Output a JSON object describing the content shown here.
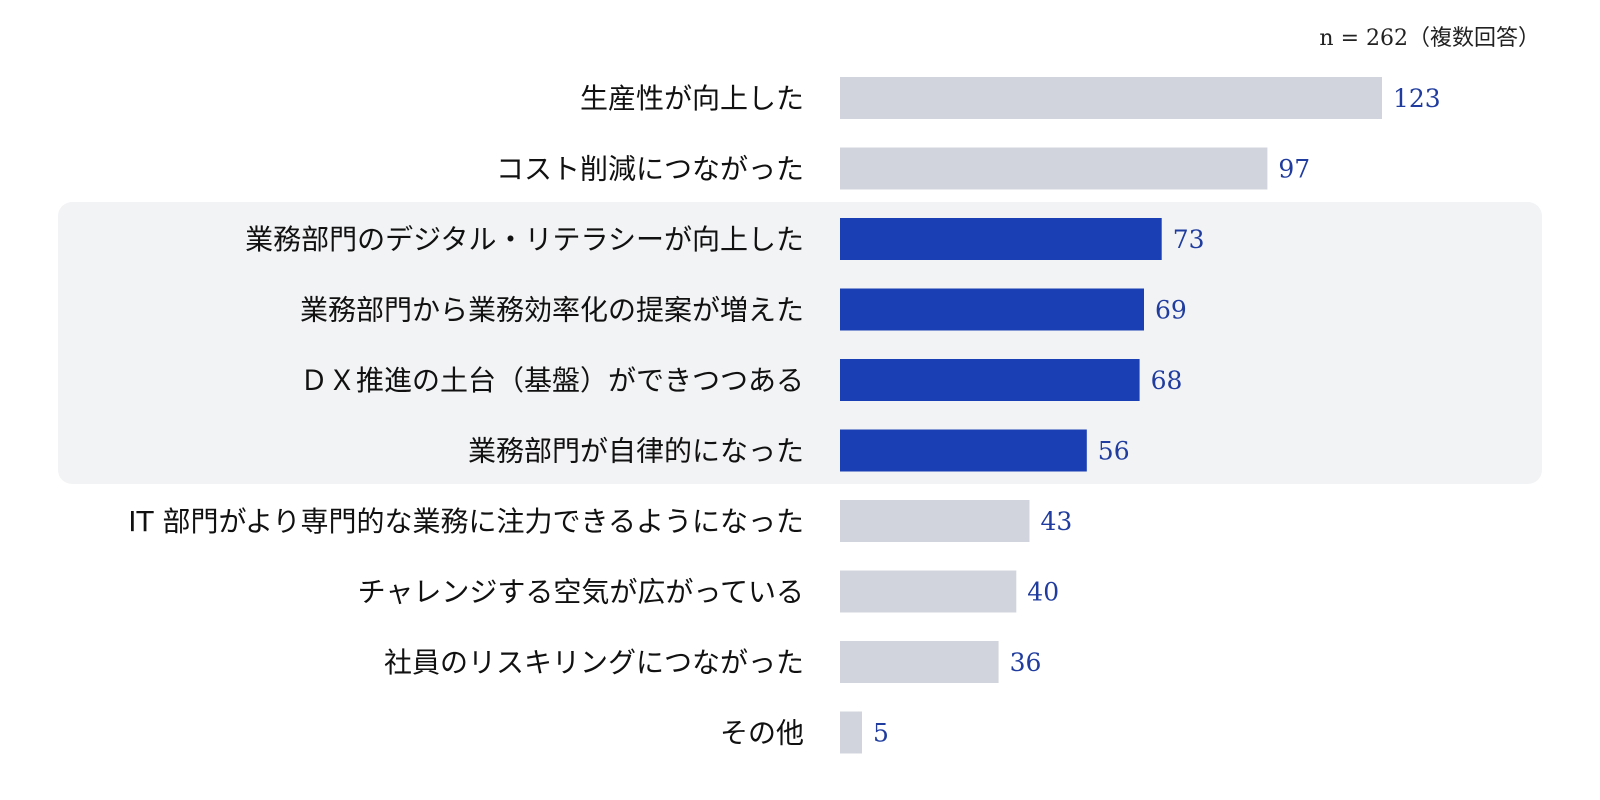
{
  "chart_data": {
    "type": "bar",
    "orientation": "horizontal",
    "note": "n = 262（複数回答）",
    "categories": [
      "生産性が向上した",
      "コスト削減につながった",
      "業務部門のデジタル・リテラシーが向上した",
      "業務部門から業務効率化の提案が増えた",
      "ＤＸ推進の土台（基盤）ができつつある",
      "業務部門が自律的になった",
      "IT 部門がより専門的な業務に注力できるようになった",
      "チャレンジする空気が広がっている",
      "社員のリスキリングにつながった",
      "その他"
    ],
    "values": [
      123,
      97,
      73,
      69,
      68,
      56,
      43,
      40,
      36,
      5
    ],
    "value_labels": [
      "123",
      "97",
      "73",
      "69",
      "68",
      "56",
      "43",
      "40",
      "36",
      "5"
    ],
    "highlighted": [
      false,
      false,
      true,
      true,
      true,
      true,
      false,
      false,
      false,
      false
    ],
    "xlim": [
      0,
      123
    ],
    "grid": false,
    "legend": "none",
    "colors": {
      "bar": "#d1d4dc",
      "bar_highlight": "#1a3fb5",
      "highlight_background": "#f2f3f5",
      "value_text": "#1f3c9e",
      "label_text": "#111111"
    }
  }
}
